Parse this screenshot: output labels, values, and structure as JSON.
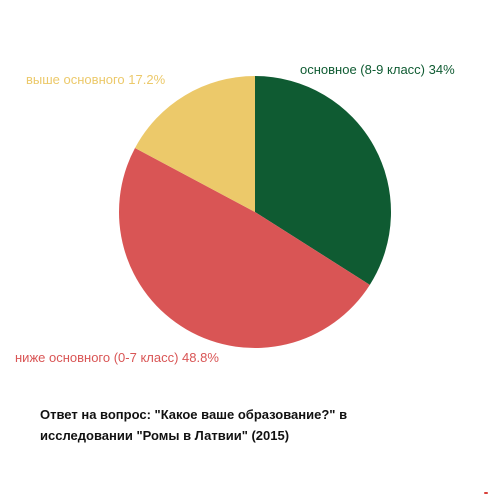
{
  "chart_data": {
    "type": "pie",
    "title": "Ответ на вопрос: \"Какое ваше образование?\" в исследовании \"Ромы в Латвии\" (2015)",
    "slices": [
      {
        "label": "основное (8-9 класс)",
        "value": 34,
        "value_text": "34%",
        "color": "#0f5b32"
      },
      {
        "label": "ниже основного (0-7 класс)",
        "value": 48.8,
        "value_text": "48.8%",
        "color": "#d95555"
      },
      {
        "label": "выше основного",
        "value": 17.2,
        "value_text": "17.2%",
        "color": "#ecc96a"
      }
    ],
    "start": "12 o'clock",
    "direction": "clockwise",
    "legend": "none (labels beside slices)"
  },
  "caption": {
    "line1": "Ответ на вопрос: \"Какое ваше образование?\" в",
    "line2": "исследовании \"Ромы в Латвии\" (2015)"
  }
}
